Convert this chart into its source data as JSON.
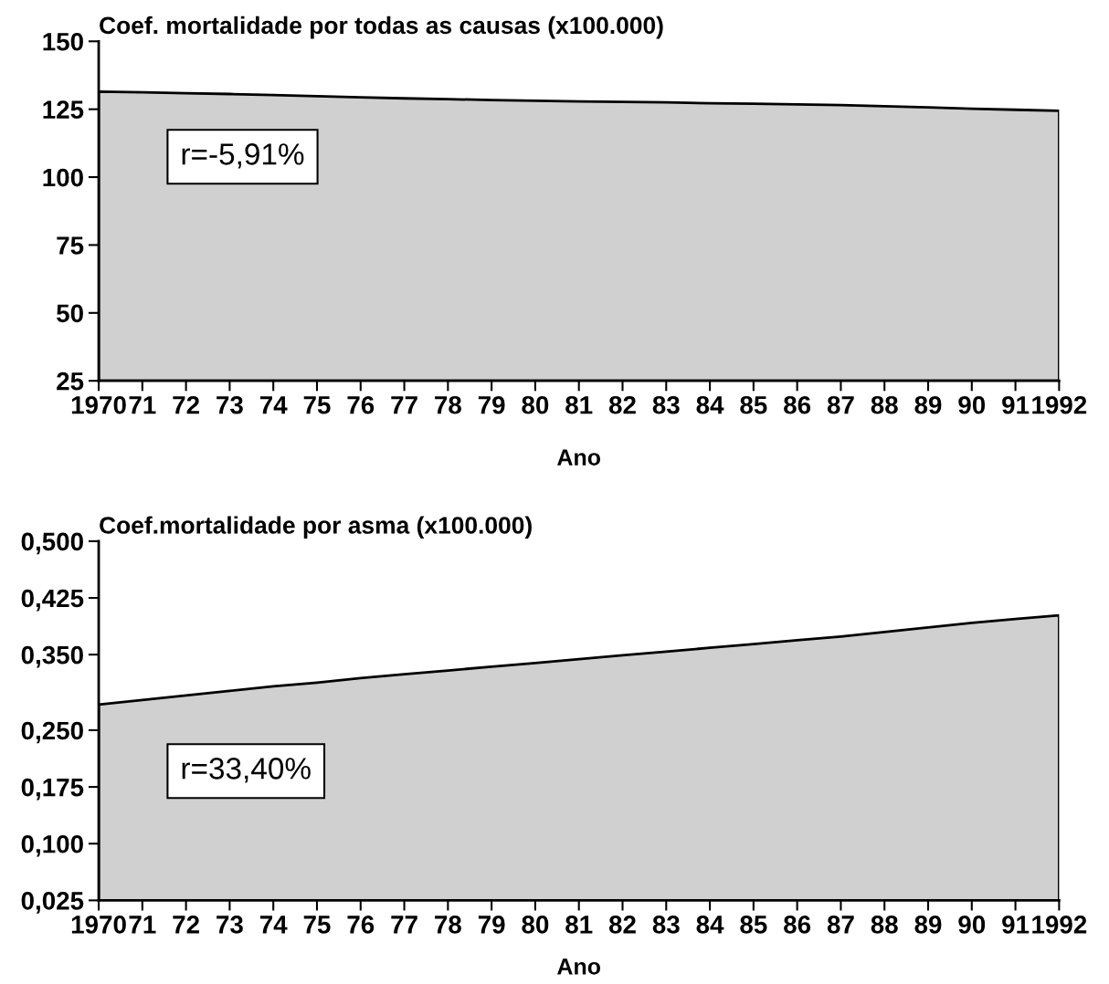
{
  "chart_data": [
    {
      "type": "area",
      "title": "Coef. mortalidade por todas as causas (x100.000)",
      "xlabel": "Ano",
      "categories": [
        "1970",
        "71",
        "72",
        "73",
        "74",
        "75",
        "76",
        "77",
        "78",
        "79",
        "80",
        "81",
        "82",
        "83",
        "84",
        "85",
        "86",
        "87",
        "88",
        "89",
        "90",
        "91",
        "1992"
      ],
      "series": [
        {
          "color": "#d0d0d0",
          "values": [
            131.5,
            131.2,
            130.9,
            130.6,
            130.2,
            129.8,
            129.4,
            129.0,
            128.7,
            128.4,
            128.1,
            127.9,
            127.7,
            127.5,
            127.2,
            127.0,
            126.8,
            126.5,
            126.1,
            125.7,
            125.2,
            124.8,
            124.4
          ]
        }
      ],
      "ylim": [
        25,
        150
      ],
      "yticks": [
        25,
        50,
        75,
        100,
        125,
        150
      ],
      "grid": false,
      "legend": false,
      "annotations": [
        "r=-5,91%"
      ]
    },
    {
      "type": "area",
      "title": "Coef.mortalidade por asma (x100.000)",
      "xlabel": "Ano",
      "categories": [
        "1970",
        "71",
        "72",
        "73",
        "74",
        "75",
        "76",
        "77",
        "78",
        "79",
        "80",
        "81",
        "82",
        "83",
        "84",
        "85",
        "86",
        "87",
        "88",
        "89",
        "90",
        "91",
        "1992"
      ],
      "series": [
        {
          "color": "#d0d0d0",
          "values": [
            0.284,
            0.29,
            0.296,
            0.302,
            0.308,
            0.313,
            0.319,
            0.324,
            0.329,
            0.334,
            0.339,
            0.344,
            0.349,
            0.354,
            0.359,
            0.364,
            0.369,
            0.374,
            0.38,
            0.386,
            0.392,
            0.397,
            0.402
          ]
        }
      ],
      "ylim": [
        0.025,
        0.5
      ],
      "yticks": [
        {
          "value": 0.025,
          "label": "0,025"
        },
        {
          "value": 0.1,
          "label": "0,100"
        },
        {
          "value": 0.175,
          "label": "0,175"
        },
        {
          "value": 0.25,
          "label": "0,250"
        },
        {
          "value": 0.35,
          "label": "0,350"
        },
        {
          "value": 0.425,
          "label": "0,425"
        },
        {
          "value": 0.5,
          "label": "0,500"
        }
      ],
      "grid": false,
      "legend": false,
      "annotations": [
        "r=33,40%"
      ]
    }
  ]
}
